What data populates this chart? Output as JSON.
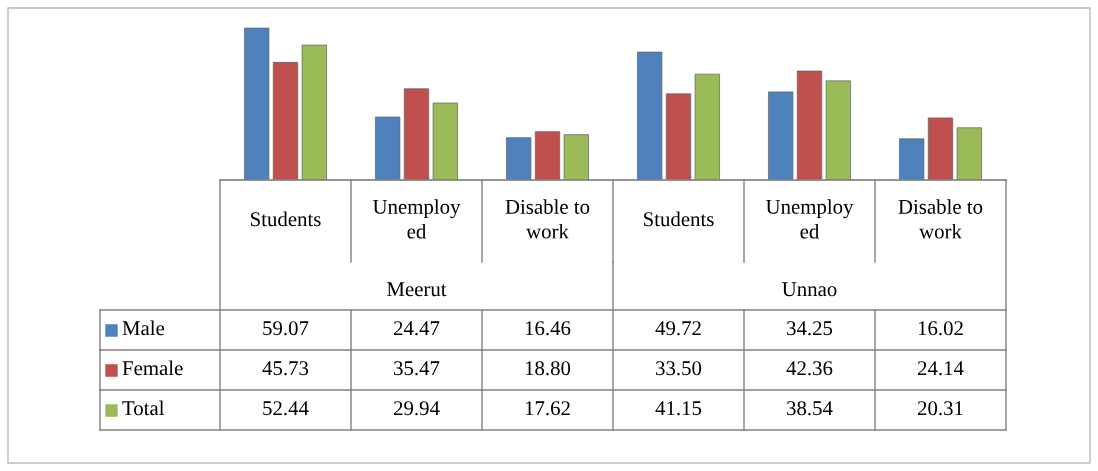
{
  "chart_data": {
    "type": "bar",
    "categories": [
      "Students",
      "Unemploy\ned",
      "Disable to\nwork",
      "Students",
      "Unemploy\ned",
      "Disable to\nwork"
    ],
    "annotations": [
      "Meerut",
      "Unnao"
    ],
    "legend": "left",
    "series": [
      {
        "name": "Male",
        "color": "#4f81bd",
        "values": [
          59.07,
          24.47,
          16.46,
          49.72,
          34.25,
          16.02
        ],
        "value_labels": [
          "59.07",
          "24.47",
          "16.46",
          "49.72",
          "34.25",
          "16.02"
        ]
      },
      {
        "name": "Female",
        "color": "#c0504d",
        "values": [
          45.73,
          35.47,
          18.8,
          33.5,
          42.36,
          24.14
        ],
        "value_labels": [
          "45.73",
          "35.47",
          "18.80",
          "33.50",
          "42.36",
          "24.14"
        ]
      },
      {
        "name": "Total",
        "color": "#9bbb59",
        "values": [
          52.44,
          29.94,
          17.62,
          41.15,
          38.54,
          20.31
        ],
        "value_labels": [
          "52.44",
          "29.94",
          "17.62",
          "41.15",
          "38.54",
          "20.31"
        ]
      }
    ]
  }
}
